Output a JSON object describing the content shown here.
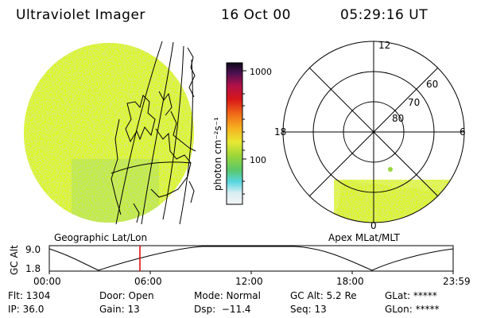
{
  "header": {
    "title": "Ultraviolet Imager",
    "date": "16 Oct 00",
    "time": "05:29:16 UT"
  },
  "colorbar": {
    "label": "photon cm⁻²s⁻¹",
    "tick_high": "1000",
    "tick_mid": "100",
    "scale": "log"
  },
  "polar_plot": {
    "mlt_top": "12",
    "mlt_left": "18",
    "mlt_right": "6",
    "mlt_bottom": "0",
    "lat_60": "60",
    "lat_70": "70",
    "lat_80": "80",
    "label": "Apex MLat/MLT"
  },
  "geo_plot": {
    "label": "Geographic Lat/Lon"
  },
  "altitude_plot": {
    "ylabel": "GC Alt",
    "ytick_top": "9.0",
    "ytick_bottom": "1.8",
    "xticks": [
      "00:00",
      "06:00",
      "12:00",
      "18:00",
      "23:59"
    ],
    "current_time_marker": "05:29"
  },
  "footer": {
    "row1": {
      "flt": "Flt: 1304",
      "door": "Door: Open",
      "mode": "Mode: Normal",
      "gcalt": "GC Alt: 5.2 Re",
      "glat": "GLat: *****"
    },
    "row2": {
      "ip": "IP: 36.0",
      "gain": "Gain: 13",
      "dsp": "Dsp:  −11.4",
      "seq": "Seq: 13",
      "glon": "GLon: *****"
    }
  },
  "colors": {
    "image_green": "#b8dc3c",
    "image_yellow": "#e8e85a",
    "marker_red": "#e00000"
  }
}
